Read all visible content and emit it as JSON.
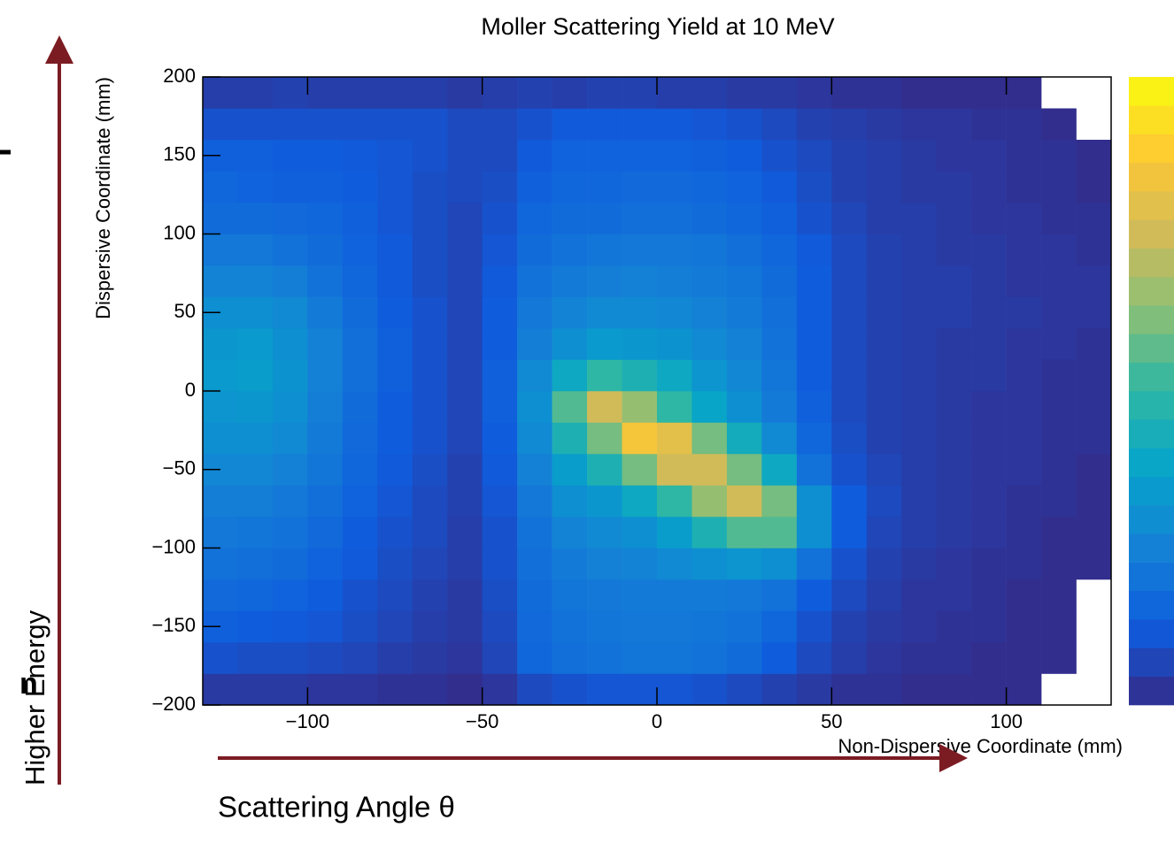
{
  "chart_data": {
    "type": "heatmap",
    "title": "Moller Scattering Yield at 10 MeV",
    "x_label": "Non-Dispersive Coordinate (mm)",
    "y_label": "Dispersive Coordinate (mm)",
    "xlim": [
      -130,
      130
    ],
    "ylim": [
      -200,
      200
    ],
    "xticks": [
      {
        "value": -100,
        "label": "−100"
      },
      {
        "value": -50,
        "label": "−50"
      },
      0,
      50,
      100
    ],
    "yticks": [
      {
        "value": -200,
        "label": "−200"
      },
      {
        "value": -150,
        "label": "−150"
      },
      {
        "value": -100,
        "label": "−100"
      },
      {
        "value": -50,
        "label": "−50"
      },
      0,
      50,
      100,
      150,
      200
    ],
    "x_bins": [
      -130,
      -120,
      -110,
      -100,
      -90,
      -80,
      -70,
      -60,
      -50,
      -40,
      -30,
      -20,
      -10,
      0,
      10,
      20,
      30,
      40,
      50,
      60,
      70,
      80,
      90,
      100,
      110,
      120,
      130
    ],
    "y_bins": [
      -200,
      -180,
      -160,
      -140,
      -120,
      -100,
      -80,
      -60,
      -40,
      -20,
      0,
      20,
      40,
      60,
      80,
      100,
      120,
      140,
      160,
      180,
      200
    ],
    "zlim": [
      0,
      10
    ],
    "palette": [
      "#352a87",
      "#0f5cdd",
      "#1481d6",
      "#06a4ca",
      "#2eb7a4",
      "#87bf77",
      "#d1bb59",
      "#fec832",
      "#f9fb0e"
    ],
    "z": [
      [
        0.4,
        0.4,
        0.4,
        0.3,
        0.3,
        0.2,
        0.2,
        0.1,
        0.3,
        0.8,
        1,
        1.1,
        1.1,
        1.1,
        1,
        0.8,
        0.6,
        0.4,
        0.2,
        0.2,
        0.1,
        0.1,
        0.1,
        0.1,
        0,
        0
      ],
      [
        1,
        0.9,
        0.9,
        0.8,
        0.7,
        0.5,
        0.4,
        0.3,
        0.7,
        1.6,
        1.9,
        2,
        2.1,
        2.1,
        2,
        1.8,
        1.3,
        0.8,
        0.5,
        0.3,
        0.2,
        0.2,
        0.1,
        0.1,
        0.1,
        0
      ],
      [
        1.4,
        1.3,
        1.2,
        1.1,
        0.9,
        0.7,
        0.5,
        0.4,
        0.8,
        1.7,
        2,
        2.1,
        2.2,
        2.2,
        2.1,
        2,
        1.6,
        1,
        0.6,
        0.4,
        0.3,
        0.2,
        0.2,
        0.1,
        0.1,
        0
      ],
      [
        1.7,
        1.6,
        1.5,
        1.3,
        1,
        0.8,
        0.6,
        0.4,
        0.9,
        1.8,
        2.1,
        2.2,
        2.3,
        2.3,
        2.3,
        2.2,
        2,
        1.3,
        0.8,
        0.5,
        0.3,
        0.3,
        0.2,
        0.1,
        0.1,
        0
      ],
      [
        2,
        1.9,
        1.8,
        1.5,
        1.2,
        0.9,
        0.7,
        0.5,
        1,
        1.9,
        2.3,
        2.5,
        2.6,
        2.8,
        3,
        3.2,
        3,
        2,
        1,
        0.6,
        0.4,
        0.3,
        0.2,
        0.2,
        0.1,
        0.1
      ],
      [
        2.2,
        2.1,
        2,
        1.7,
        1.3,
        1,
        0.8,
        0.5,
        1,
        2,
        2.6,
        2.8,
        3,
        3.5,
        4.5,
        5.5,
        5.5,
        3,
        1.3,
        0.7,
        0.5,
        0.4,
        0.3,
        0.2,
        0.1,
        0.1
      ],
      [
        2.4,
        2.4,
        2.2,
        1.9,
        1.5,
        1.1,
        0.8,
        0.6,
        1.1,
        2.2,
        3,
        3.3,
        4,
        5,
        6.5,
        7.5,
        6,
        3,
        1.3,
        0.8,
        0.5,
        0.4,
        0.3,
        0.2,
        0.2,
        0.1
      ],
      [
        2.7,
        2.7,
        2.5,
        2.1,
        1.6,
        1.2,
        0.9,
        0.6,
        1.2,
        2.5,
        3.5,
        4.5,
        6,
        7.5,
        7.5,
        6,
        4,
        2,
        1,
        0.7,
        0.5,
        0.4,
        0.3,
        0.3,
        0.2,
        0.1
      ],
      [
        3,
        3,
        2.8,
        2.3,
        1.7,
        1.3,
        1,
        0.7,
        1.3,
        2.8,
        4.5,
        6,
        8.5,
        8,
        6,
        4.2,
        2.8,
        1.6,
        0.9,
        0.6,
        0.5,
        0.4,
        0.3,
        0.3,
        0.2,
        0.2
      ],
      [
        3.2,
        3.3,
        3,
        2.4,
        1.8,
        1.3,
        1,
        0.7,
        1.4,
        3,
        5.5,
        7.5,
        6.5,
        5,
        3.8,
        3,
        2.3,
        1.4,
        0.8,
        0.6,
        0.5,
        0.4,
        0.3,
        0.3,
        0.2,
        0.2
      ],
      [
        3.4,
        3.5,
        3.1,
        2.5,
        1.9,
        1.4,
        1,
        0.7,
        1.4,
        2.8,
        4,
        5,
        4.5,
        4,
        3.2,
        2.7,
        2.1,
        1.3,
        0.8,
        0.6,
        0.5,
        0.4,
        0.4,
        0.3,
        0.2,
        0.2
      ],
      [
        3.3,
        3.4,
        3,
        2.5,
        1.9,
        1.4,
        1,
        0.7,
        1.3,
        2.4,
        3,
        3.4,
        3.3,
        3.1,
        2.8,
        2.5,
        2,
        1.3,
        0.8,
        0.6,
        0.5,
        0.4,
        0.4,
        0.3,
        0.3,
        0.2
      ],
      [
        3,
        3,
        2.8,
        2.3,
        1.8,
        1.3,
        1,
        0.7,
        1.3,
        2.2,
        2.6,
        2.8,
        2.8,
        2.7,
        2.5,
        2.3,
        1.9,
        1.3,
        0.8,
        0.6,
        0.5,
        0.5,
        0.4,
        0.4,
        0.3,
        0.3
      ],
      [
        2.6,
        2.6,
        2.4,
        2,
        1.6,
        1.2,
        0.9,
        0.7,
        1.2,
        2,
        2.3,
        2.4,
        2.5,
        2.4,
        2.3,
        2.1,
        1.8,
        1.3,
        0.8,
        0.6,
        0.5,
        0.5,
        0.4,
        0.3,
        0.3,
        0.3
      ],
      [
        2.2,
        2.2,
        2,
        1.8,
        1.5,
        1.2,
        0.9,
        0.7,
        1.1,
        1.8,
        2,
        2.1,
        2.2,
        2.2,
        2.1,
        1.9,
        1.6,
        1.2,
        0.8,
        0.6,
        0.5,
        0.4,
        0.4,
        0.3,
        0.3,
        0.2
      ],
      [
        1.8,
        1.8,
        1.7,
        1.6,
        1.4,
        1.1,
        0.9,
        0.7,
        1,
        1.6,
        1.8,
        1.8,
        1.9,
        1.9,
        1.8,
        1.6,
        1.4,
        1,
        0.7,
        0.5,
        0.5,
        0.4,
        0.3,
        0.3,
        0.2,
        0.2
      ],
      [
        1.6,
        1.5,
        1.4,
        1.4,
        1.3,
        1.1,
        0.9,
        0.8,
        0.9,
        1.4,
        1.6,
        1.6,
        1.7,
        1.7,
        1.6,
        1.5,
        1.2,
        0.9,
        0.6,
        0.5,
        0.4,
        0.4,
        0.3,
        0.2,
        0.2,
        0.1
      ],
      [
        1.4,
        1.4,
        1.3,
        1.3,
        1.2,
        1.1,
        1,
        0.8,
        0.8,
        1.2,
        1.5,
        1.5,
        1.5,
        1.5,
        1.4,
        1.3,
        1,
        0.8,
        0.6,
        0.5,
        0.4,
        0.3,
        0.3,
        0.2,
        0.2,
        0.1
      ],
      [
        1,
        1,
        1,
        1,
        1,
        1,
        1,
        0.8,
        0.8,
        1,
        1.2,
        1.2,
        1.2,
        1.2,
        1.1,
        1,
        0.8,
        0.6,
        0.5,
        0.4,
        0.3,
        0.3,
        0.2,
        0.2,
        0.1,
        0
      ],
      [
        0.5,
        0.5,
        0.6,
        0.5,
        0.5,
        0.5,
        0.5,
        0.4,
        0.5,
        0.6,
        0.5,
        0.6,
        0.6,
        0.5,
        0.5,
        0.4,
        0.4,
        0.3,
        0.2,
        0.2,
        0.1,
        0.1,
        0.1,
        0.1,
        0,
        0
      ]
    ],
    "annotations": {
      "vertical_arrow_label": "Higher Energy",
      "horizontal_arrow_label": "Scattering Angle θ",
      "cropped_text": "n"
    }
  }
}
